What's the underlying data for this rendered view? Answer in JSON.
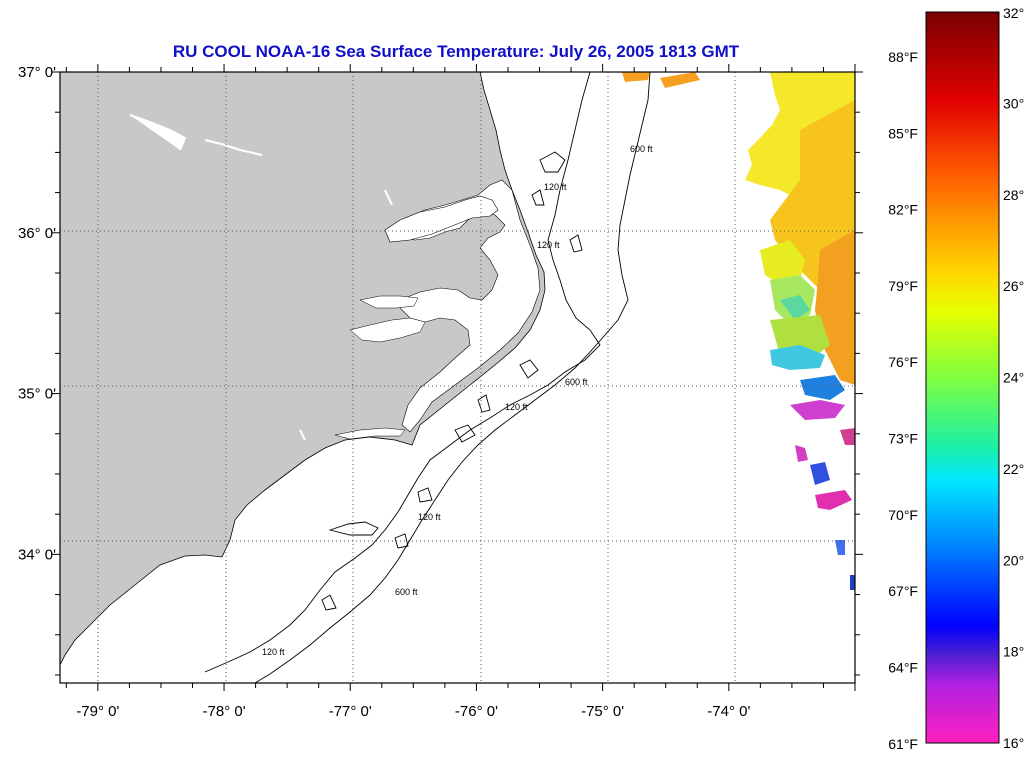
{
  "title": "RU COOL  NOAA-16  Sea Surface Temperature:  July 26, 2005 1813 GMT",
  "map": {
    "lon_range": [
      -79.3,
      -73.0
    ],
    "lat_range": [
      33.2,
      37.0
    ],
    "lon_labels": [
      {
        "value": -79,
        "label": "-79° 0'"
      },
      {
        "value": -78,
        "label": "-78° 0'"
      },
      {
        "value": -77,
        "label": "-77° 0'"
      },
      {
        "value": -76,
        "label": "-76° 0'"
      },
      {
        "value": -75,
        "label": "-75° 0'"
      },
      {
        "value": -74,
        "label": "-74° 0'"
      }
    ],
    "lat_labels": [
      {
        "value": 37,
        "label": "37° 0'"
      },
      {
        "value": 36,
        "label": "36° 0'"
      },
      {
        "value": 35,
        "label": "35° 0'"
      },
      {
        "value": 34,
        "label": "34° 0'"
      }
    ],
    "land_color": "#c8c8c8",
    "ocean_color": "#ffffff",
    "contour_labels": [
      "120 ft",
      "600 ft"
    ]
  },
  "colorbar": {
    "celsius": [
      "32°C",
      "30°C",
      "28°C",
      "26°C",
      "24°C",
      "22°C",
      "20°C",
      "18°C",
      "16°C"
    ],
    "fahrenheit": [
      "88°F",
      "85°F",
      "82°F",
      "79°F",
      "76°F",
      "73°F",
      "70°F",
      "67°F",
      "64°F",
      "61°F"
    ],
    "colors": [
      "#8b0000",
      "#ff0000",
      "#ff8c00",
      "#ffd700",
      "#adff2f",
      "#00ff7f",
      "#00ffff",
      "#1e90ff",
      "#0000ff",
      "#9400d3",
      "#ff00ff",
      "#ff69b4"
    ]
  }
}
